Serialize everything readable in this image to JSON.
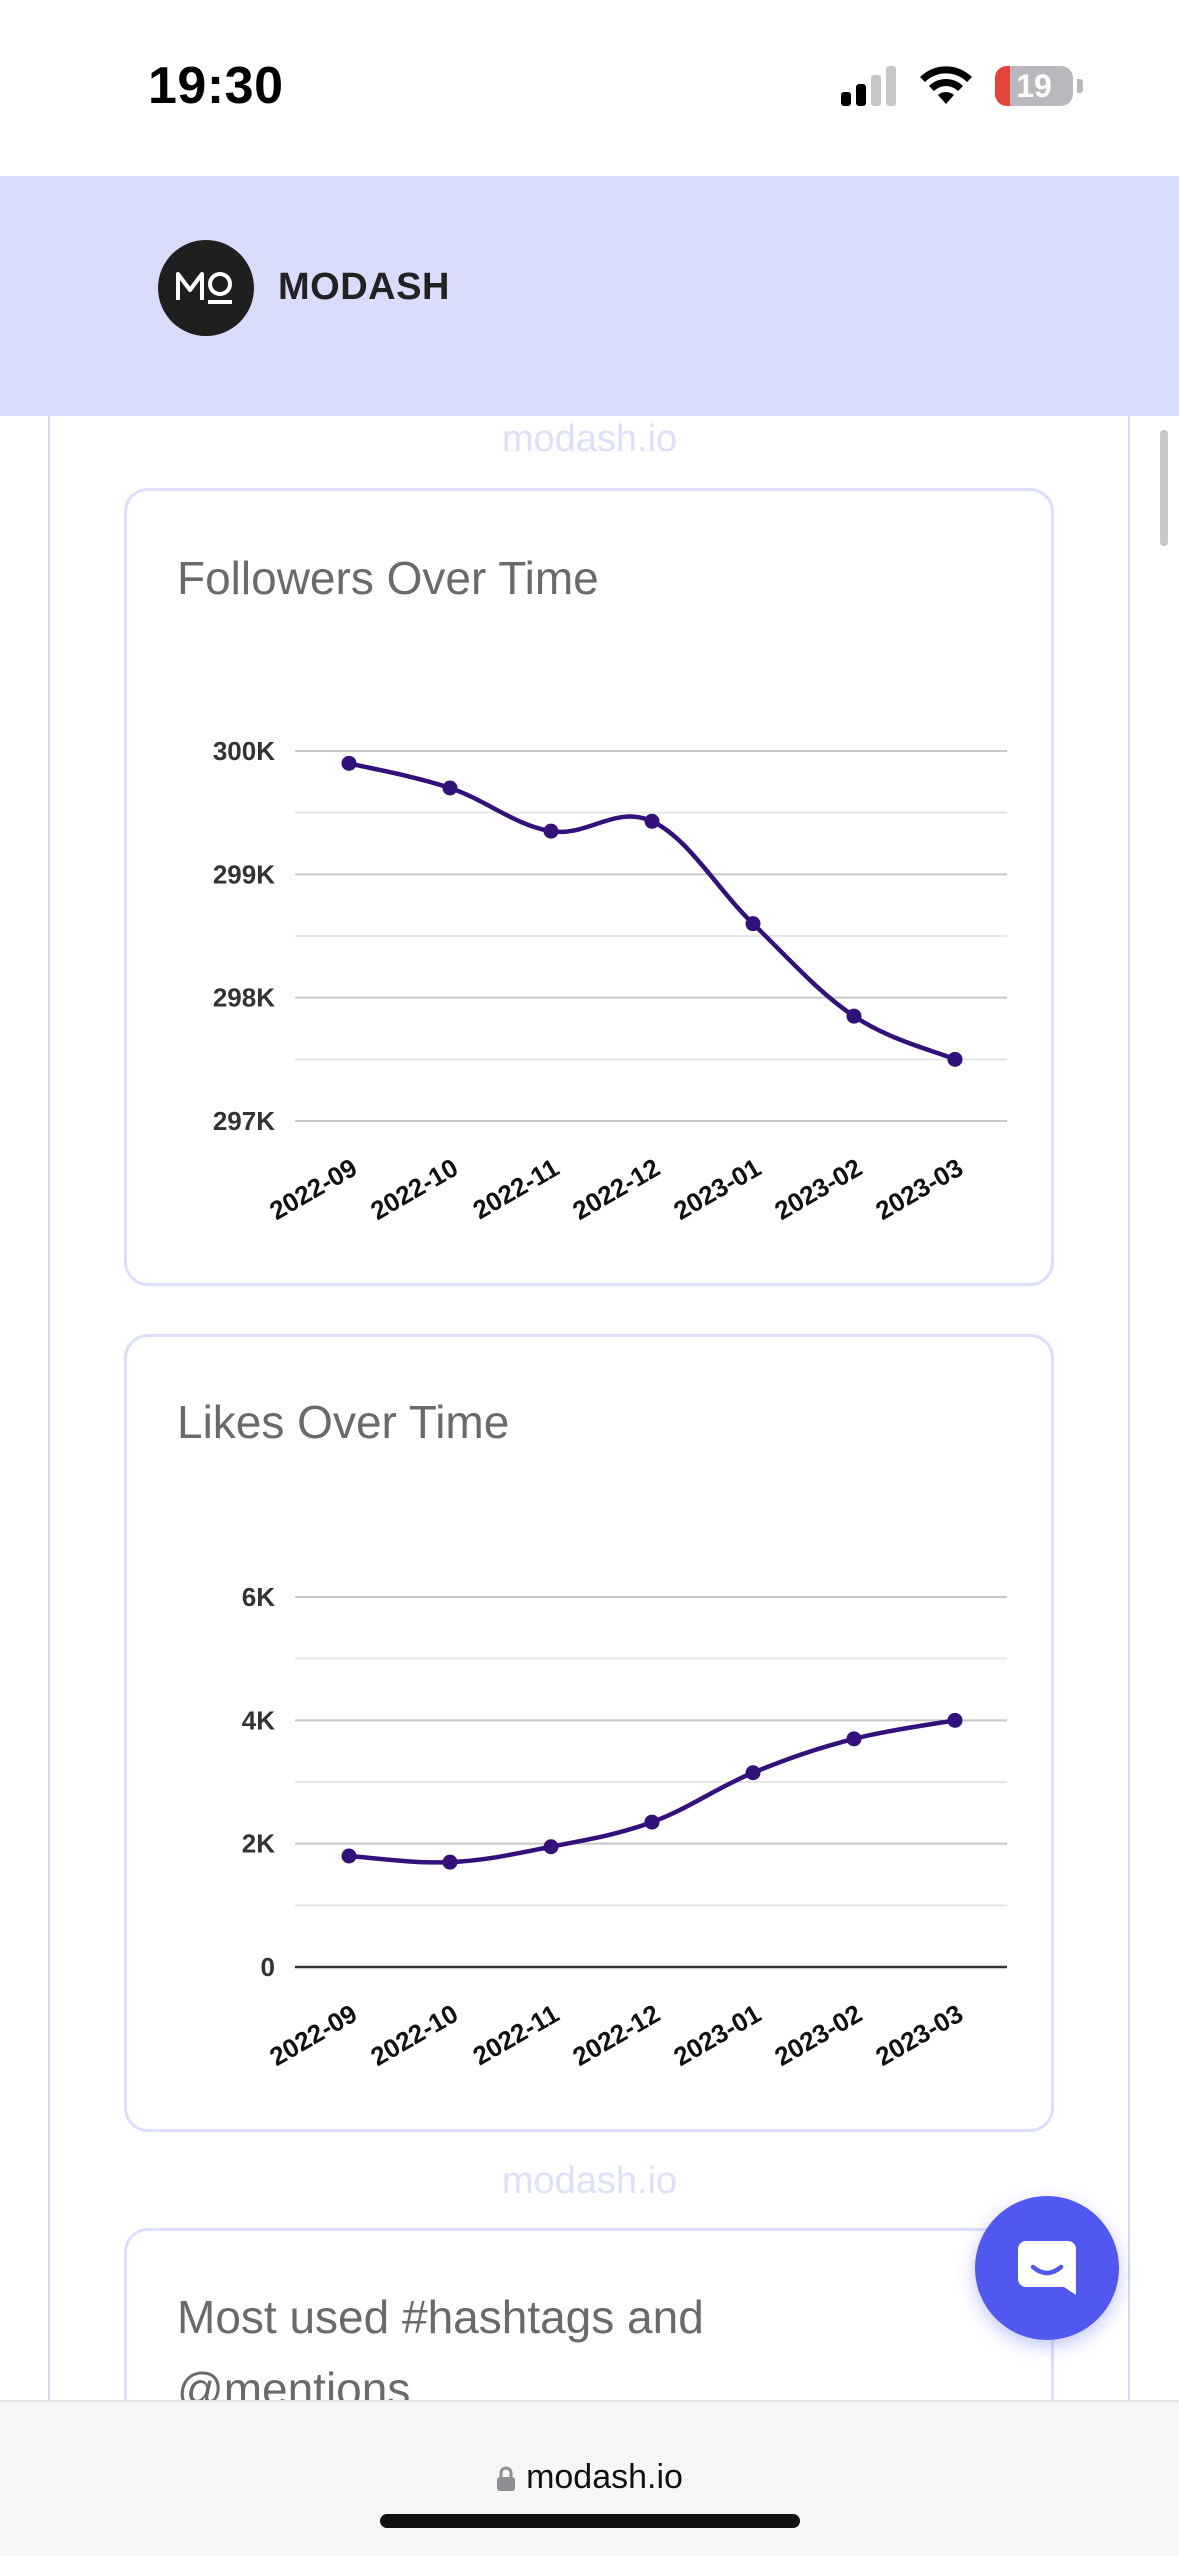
{
  "status_bar": {
    "time": "19:30",
    "battery_level": "19",
    "battery_fraction": 0.19,
    "signal_bars": 2,
    "icons": [
      "cellular-signal-icon",
      "wifi-icon",
      "battery-icon"
    ]
  },
  "header": {
    "logo_text": "MO",
    "brand_name": "MODASH"
  },
  "watermarks": {
    "top": "modash.io",
    "middle": "modash.io"
  },
  "followers_card": {
    "title": "Followers Over Time",
    "chart_data": {
      "type": "line",
      "title": "Followers Over Time",
      "categories": [
        "2022-09",
        "2022-10",
        "2022-11",
        "2022-12",
        "2023-01",
        "2023-02",
        "2023-03"
      ],
      "values": [
        299900,
        299700,
        299350,
        299430,
        298600,
        297850,
        297500
      ],
      "ylim": [
        297000,
        300000
      ],
      "y_ticks": [
        300000,
        299000,
        298000,
        297000
      ],
      "y_tick_labels": [
        "300K",
        "299K",
        "298K",
        "297K"
      ],
      "grid": true,
      "line_color": "#33117a"
    }
  },
  "likes_card": {
    "title": "Likes Over Time",
    "chart_data": {
      "type": "line",
      "title": "Likes Over Time",
      "categories": [
        "2022-09",
        "2022-10",
        "2022-11",
        "2022-12",
        "2023-01",
        "2023-02",
        "2023-03"
      ],
      "values": [
        1800,
        1700,
        1950,
        2350,
        3150,
        3700,
        4000
      ],
      "ylim": [
        0,
        6000
      ],
      "y_ticks": [
        6000,
        4000,
        2000,
        0
      ],
      "y_tick_labels": [
        "6K",
        "4K",
        "2K",
        "0"
      ],
      "grid": true,
      "line_color": "#33117a"
    }
  },
  "hashtags_card": {
    "title": "Most used #hashtags and @mentions"
  },
  "chat_button": {
    "icon": "chat-bubble-icon",
    "color": "#5058f0"
  },
  "browser_bar": {
    "url": "modash.io",
    "icon": "lock-icon"
  }
}
